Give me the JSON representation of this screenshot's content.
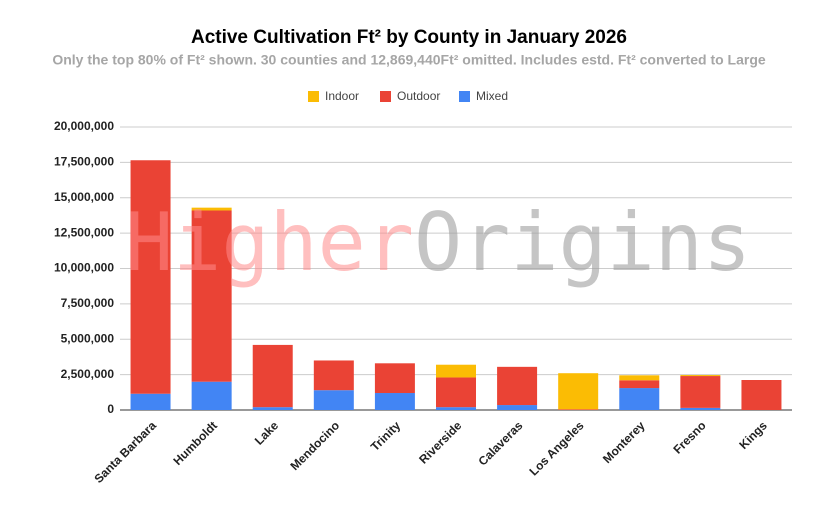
{
  "chart_data": {
    "type": "stacked_bar",
    "title": "Active Cultivation Ft² by County in January 2026",
    "subtitle": "Only the top 80% of Ft² shown. 30 counties and 12,869,440Ft² omitted. Includes estd. Ft² converted to Large",
    "watermark": [
      "Higher",
      "Origins"
    ],
    "categories": [
      "Santa Barbara",
      "Humboldt",
      "Lake",
      "Mendocino",
      "Trinity",
      "Riverside",
      "Calaveras",
      "Los Angeles",
      "Monterey",
      "Fresno",
      "Kings"
    ],
    "series": [
      {
        "name": "Indoor",
        "color": "#fbbc04",
        "values": [
          0,
          200000,
          0,
          0,
          0,
          900000,
          0,
          2550000,
          350000,
          70000,
          0
        ]
      },
      {
        "name": "Outdoor",
        "color": "#ea4335",
        "values": [
          16500000,
          12100000,
          4400000,
          2100000,
          2100000,
          2100000,
          2700000,
          50000,
          550000,
          2250000,
          2120000
        ]
      },
      {
        "name": "Mixed",
        "color": "#4285f4",
        "values": [
          1150000,
          2000000,
          200000,
          1400000,
          1200000,
          200000,
          350000,
          0,
          1550000,
          150000,
          0
        ]
      }
    ],
    "stack_order": [
      "Mixed",
      "Outdoor",
      "Indoor"
    ],
    "ylim": [
      0,
      20000000
    ],
    "yticks": [
      0,
      {
        "value": 2500000,
        "label": "2,500,000"
      },
      {
        "value": 5000000,
        "label": "5,000,000"
      },
      {
        "value": 7500000,
        "label": "7,500,000"
      },
      {
        "value": 10000000,
        "label": "10,000,000"
      },
      {
        "value": 12500000,
        "label": "12,500,000"
      },
      {
        "value": 15000000,
        "label": "15,000,000"
      },
      {
        "value": 17500000,
        "label": "17,500,000"
      },
      {
        "value": 20000000,
        "label": "20,000,000"
      }
    ],
    "grid": true,
    "legend": "top"
  }
}
